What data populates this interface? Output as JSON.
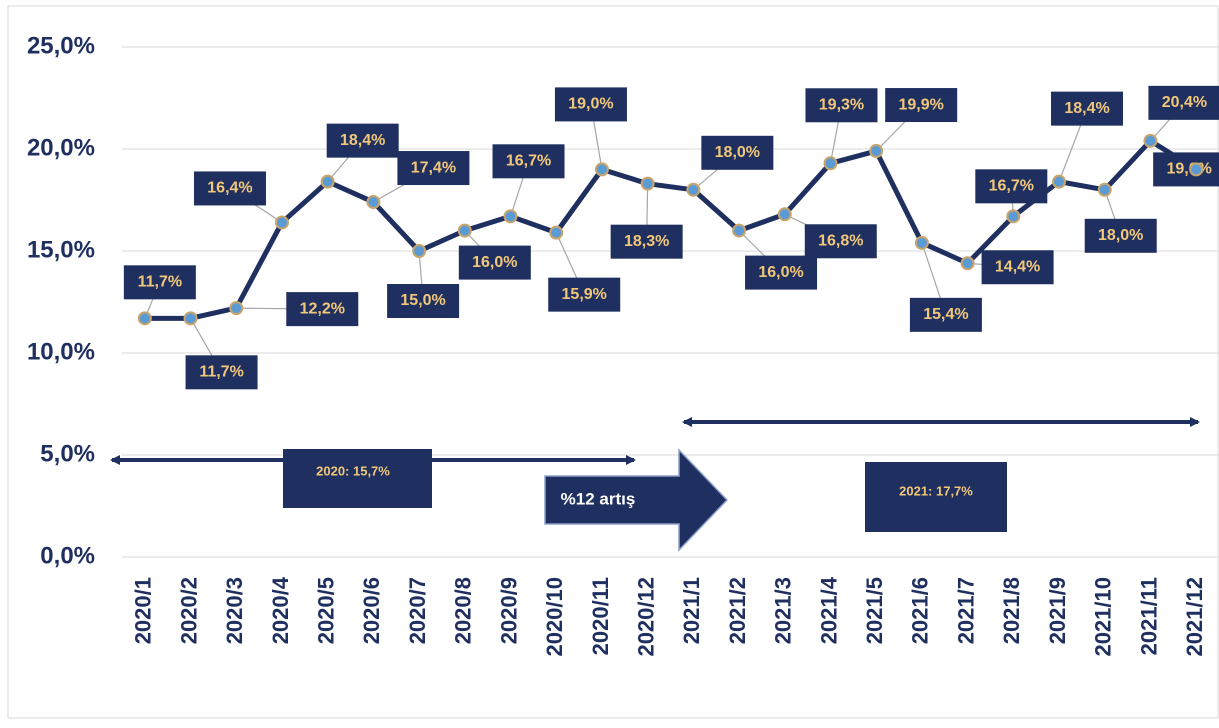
{
  "chart_data": {
    "type": "line",
    "categories": [
      "2020/1",
      "2020/2",
      "2020/3",
      "2020/4",
      "2020/5",
      "2020/6",
      "2020/7",
      "2020/8",
      "2020/9",
      "2020/10",
      "2020/11",
      "2020/12",
      "2021/1",
      "2021/2",
      "2021/3",
      "2021/4",
      "2021/5",
      "2021/6",
      "2021/7",
      "2021/8",
      "2021/9",
      "2021/10",
      "2021/11",
      "2021/12"
    ],
    "values": [
      11.7,
      11.7,
      12.2,
      16.4,
      18.4,
      17.4,
      15.0,
      16.0,
      16.7,
      15.9,
      19.0,
      18.3,
      18.0,
      16.0,
      16.8,
      19.3,
      19.9,
      15.4,
      14.4,
      16.7,
      18.4,
      18.0,
      20.4,
      19.0
    ],
    "value_labels": [
      "11,7%",
      "11,7%",
      "12,2%",
      "16,4%",
      "18,4%",
      "17,4%",
      "15,0%",
      "16,0%",
      "16,7%",
      "15,9%",
      "19,0%",
      "18,3%",
      "18,0%",
      "16,0%",
      "16,8%",
      "19,3%",
      "19,9%",
      "15,4%",
      "14,4%",
      "16,7%",
      "18,4%",
      "18,0%",
      "20,4%",
      "19,0%"
    ],
    "color": "#1f3060",
    "ylim": [
      0,
      25
    ],
    "yticks": [
      {
        "value": 0,
        "label": "0,0%"
      },
      {
        "value": 5,
        "label": "5,0%"
      },
      {
        "value": 10,
        "label": "10,0%"
      },
      {
        "value": 15,
        "label": "15,0%"
      },
      {
        "value": 20,
        "label": "20,0%"
      },
      {
        "value": 25,
        "label": "25,0%"
      }
    ],
    "grid": true,
    "annotations": [
      "2020: 15,7%",
      "%12 artış",
      "2021: 17,7%"
    ]
  }
}
